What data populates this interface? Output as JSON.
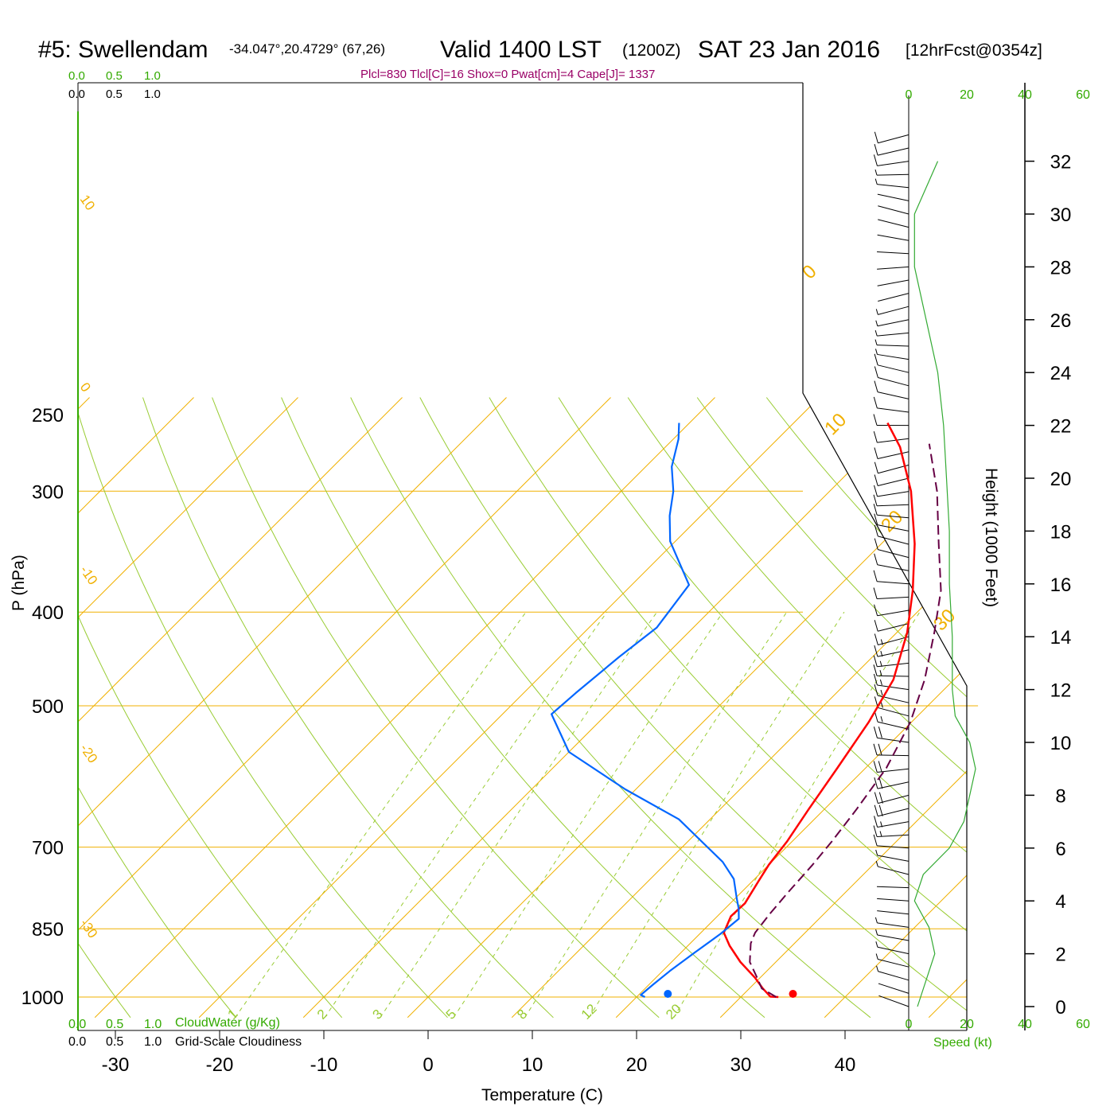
{
  "header": {
    "station": "#5: Swellendam",
    "coords": "-34.047°,20.4729° (67,26)",
    "valid": "Valid 1400 LST",
    "zulu": "(1200Z)",
    "date": "SAT 23 Jan 2016",
    "forecast": "[12hrFcst@0354z]",
    "indices": "Plcl=830 Tlcl[C]=16 Shox=0 Pwat[cm]=4 Cape[J]= 1337"
  },
  "colors": {
    "temperature": "#ff0000",
    "dewpoint": "#0066ff",
    "parcel": "#660044",
    "isobar_isotherm": "#f0b000",
    "dry_adiabat": "#99cc33",
    "mixing_ratio": "#99cc33",
    "green_label": "#33aa00",
    "wind_speed_profile": "#33aa33",
    "indices_text": "#990066"
  },
  "cloud_scale": {
    "top_green": [
      "0.0",
      "0.5",
      "1.0"
    ],
    "top_black": [
      "0.0",
      "0.5",
      "1.0"
    ],
    "bottom_green": [
      "0.0",
      "0.5",
      "1.0"
    ],
    "bottom_green_label": "CloudWater (g/Kg)",
    "bottom_black": [
      "0.0",
      "0.5",
      "1.0"
    ],
    "bottom_black_label": "Grid-Scale Cloudiness"
  },
  "chart_data": {
    "type": "line",
    "title": "#5: Swellendam",
    "xlabel": "Temperature (C)",
    "ylabel": "P (hPa)",
    "y2label": "Height (1000 Feet)",
    "xlim": [
      -34,
      36
    ],
    "ylim": [
      1050,
      250
    ],
    "x_ticks": [
      -30,
      -20,
      -10,
      0,
      10,
      20,
      30,
      40
    ],
    "y_ticks": [
      250,
      300,
      400,
      500,
      700,
      850,
      1000
    ],
    "height_ticks": [
      0,
      2,
      4,
      6,
      8,
      10,
      12,
      14,
      16,
      18,
      20,
      22,
      24,
      26,
      28,
      30,
      32
    ],
    "wind_speed_ticks": [
      0,
      20,
      40,
      60
    ],
    "wind_speed_label": "Speed (kt)",
    "isotherm_labels": [
      "10",
      "0",
      "-10",
      "-20",
      "-30"
    ],
    "isotherm_labels_right": [
      "0",
      "10",
      "20",
      "30"
    ],
    "mixing_ratio_labels": [
      "1",
      "2",
      "3",
      "5",
      "8",
      "12",
      "20"
    ],
    "surface_temperature": 35,
    "surface_dewpoint": 23,
    "series": [
      {
        "key": "temperature",
        "points": [
          [
            33.6,
            1000
          ],
          [
            32.8,
            999
          ],
          [
            31.3,
            980
          ],
          [
            29.5,
            955
          ],
          [
            26.6,
            920
          ],
          [
            24.0,
            885
          ],
          [
            22.2,
            858
          ],
          [
            21.3,
            825
          ],
          [
            21.4,
            800
          ],
          [
            20.6,
            760
          ],
          [
            20.0,
            730
          ],
          [
            19.5,
            690
          ],
          [
            18.5,
            640
          ],
          [
            17.3,
            580
          ],
          [
            15.9,
            520
          ],
          [
            14.2,
            470
          ],
          [
            11.0,
            420
          ],
          [
            7.5,
            380
          ],
          [
            3.2,
            340
          ],
          [
            -2.2,
            300
          ],
          [
            -7.5,
            270
          ],
          [
            -11.0,
            255
          ]
        ]
      },
      {
        "key": "dewpoint",
        "points": [
          [
            20.8,
            1000
          ],
          [
            20.2,
            995
          ],
          [
            20.4,
            970
          ],
          [
            20.7,
            940
          ],
          [
            21.3,
            900
          ],
          [
            22.0,
            860
          ],
          [
            22.3,
            830
          ],
          [
            21.3,
            810
          ],
          [
            20.1,
            790
          ],
          [
            18.0,
            755
          ],
          [
            15.3,
            725
          ],
          [
            7.0,
            655
          ],
          [
            -1.0,
            610
          ],
          [
            -10.0,
            558
          ],
          [
            -15.3,
            510
          ],
          [
            -15.0,
            485
          ],
          [
            -14.3,
            445
          ],
          [
            -13.5,
            415
          ],
          [
            -14.5,
            375
          ],
          [
            -20.5,
            338
          ],
          [
            -23.0,
            318
          ],
          [
            -25.0,
            300
          ],
          [
            -27.5,
            283
          ],
          [
            -29.5,
            265
          ],
          [
            -31.0,
            255
          ]
        ]
      },
      {
        "key": "parcel",
        "points": [
          [
            33.4,
            1000
          ],
          [
            31.2,
            980
          ],
          [
            29.4,
            950
          ],
          [
            27.5,
            920
          ],
          [
            25.8,
            880
          ],
          [
            25.2,
            858
          ],
          [
            24.8,
            820
          ],
          [
            24.5,
            780
          ],
          [
            24.2,
            730
          ],
          [
            23.8,
            690
          ],
          [
            23.1,
            640
          ],
          [
            22.0,
            580
          ],
          [
            19.9,
            520
          ],
          [
            17.2,
            470
          ],
          [
            13.6,
            420
          ],
          [
            10.2,
            380
          ],
          [
            5.5,
            340
          ],
          [
            0.3,
            300
          ],
          [
            -5.0,
            268
          ]
        ]
      }
    ],
    "wind_profile_speeds_kt": [
      [
        0,
        3
      ],
      [
        1,
        6
      ],
      [
        2,
        9
      ],
      [
        3,
        7
      ],
      [
        4,
        2
      ],
      [
        5,
        5
      ],
      [
        6,
        14
      ],
      [
        7,
        19
      ],
      [
        8,
        21
      ],
      [
        9,
        23
      ],
      [
        10,
        21
      ],
      [
        11,
        16
      ],
      [
        12,
        15
      ],
      [
        14,
        15
      ],
      [
        16,
        14
      ],
      [
        18,
        14
      ],
      [
        20,
        13
      ],
      [
        22,
        12
      ],
      [
        24,
        10
      ],
      [
        26,
        6
      ],
      [
        28,
        2
      ],
      [
        30,
        2
      ],
      [
        32,
        10
      ]
    ]
  }
}
